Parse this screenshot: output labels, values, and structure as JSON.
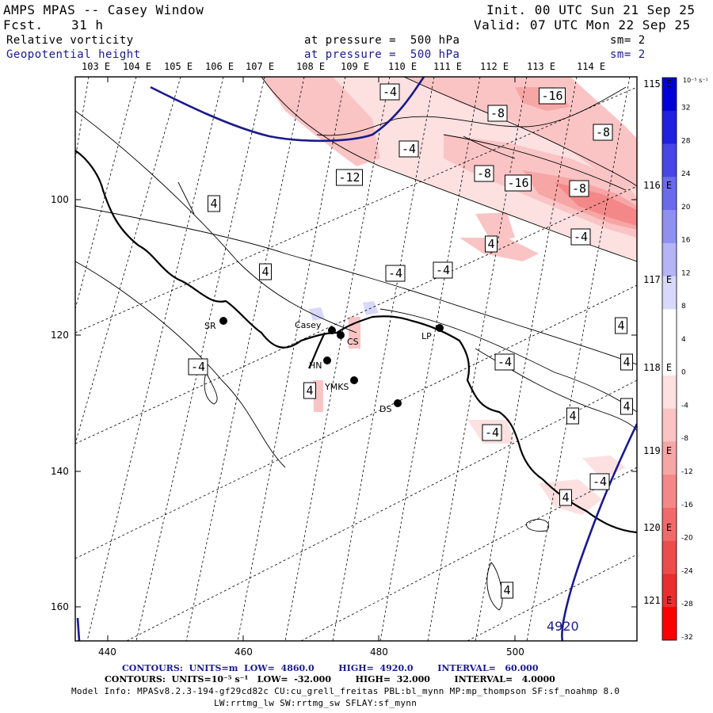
{
  "header": {
    "title": "AMPS MPAS -- Casey Window",
    "fcst_label": "Fcst.",
    "fcst_value": "31 h",
    "init": "Init. 00 UTC Sun 21 Sep 25",
    "valid": "Valid: 07 UTC Mon 22 Sep 25",
    "field1": "Relative vorticity",
    "field1_level": "at pressure =  500 hPa",
    "field1_smooth": "sm= 2",
    "field2": "Geopotential height",
    "field2_level": "at pressure =  500 hPa",
    "field2_smooth": "sm= 2"
  },
  "longitude_labels_top": [
    "103 E",
    "104 E",
    "105 E",
    "106 E",
    "107 E",
    "108 E",
    "109 E",
    "110 E",
    "111 E",
    "112 E",
    "113 E",
    "114 E"
  ],
  "longitude_labels_right": [
    "115 E",
    "116 E",
    "117 E",
    "118 E",
    "119 E",
    "120 E",
    "121 E"
  ],
  "x_axis": {
    "ticks": [
      "440",
      "460",
      "480",
      "500"
    ]
  },
  "y_axis": {
    "ticks": [
      "100",
      "120",
      "140",
      "160"
    ]
  },
  "stations": [
    {
      "name": "SR"
    },
    {
      "name": "Casey"
    },
    {
      "name": "CS"
    },
    {
      "name": "HN"
    },
    {
      "name": "YMKS"
    },
    {
      "name": "DS"
    },
    {
      "name": "LP"
    }
  ],
  "contour_labels": [
    "-4",
    "-16",
    "-8",
    "-4",
    "-8",
    "-12",
    "-16",
    "-8",
    "-8",
    "-4",
    "-4",
    "4",
    "4",
    "-4",
    "4",
    "4",
    "-4",
    "4",
    "4",
    "-4",
    "4",
    "4",
    "-4",
    "-4",
    "4",
    "4"
  ],
  "height_label": "4920",
  "colorbar": {
    "units": "10⁻⁵ s⁻¹",
    "levels": [
      "32",
      "28",
      "24",
      "20",
      "16",
      "12",
      "8",
      "4",
      "0",
      "-4",
      "-8",
      "-12",
      "-16",
      "-20",
      "-24",
      "-28",
      "-32"
    ],
    "colors": [
      "#0000d8",
      "#2020e0",
      "#4646e6",
      "#6a6aec",
      "#9090f0",
      "#b4b4f6",
      "#d8d8fa",
      "#ffffff",
      "#ffffff",
      "#fde0e0",
      "#fac4c4",
      "#f7a6a6",
      "#f48888",
      "#f06a6a",
      "#ec4c4c",
      "#e82e2e",
      "#ff0000"
    ]
  },
  "footer": {
    "line1": "CONTOURS:  UNITS=m  LOW=  4860.0        HIGH=  4920.0        INTERVAL=   60.000",
    "line2": "CONTOURS:  UNITS=10⁻⁵ s⁻¹   LOW=  -32.000        HIGH=  32.000        INTERVAL=   4.0000",
    "line3": "Model Info: MPASv8.2.3-194-gf29cd82c CU:cu_grell_freitas PBL:bl_mynn MP:mp_thompson SF:sf_noahmp 8.0",
    "line4": "LW:rrtmg_lw SW:rrtmg_sw SFLAY:sf_mynn"
  }
}
